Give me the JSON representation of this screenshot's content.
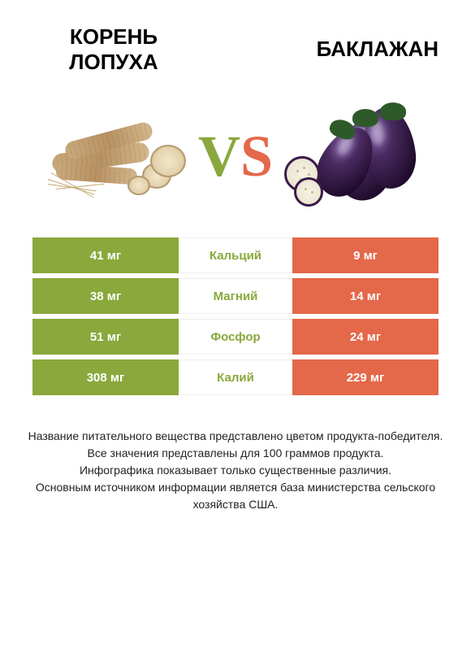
{
  "header": {
    "left_title_line1": "Корень",
    "left_title_line2": "лопуха",
    "right_title": "Баклажан"
  },
  "vs": {
    "v": "V",
    "s": "S"
  },
  "colors": {
    "left": "#8aa83c",
    "right": "#e4684a",
    "text_white": "#ffffff",
    "bg": "#ffffff"
  },
  "table": {
    "label_fontsize": 15,
    "rows": [
      {
        "label": "Кальций",
        "left_value": "41 мг",
        "right_value": "9 мг",
        "winner": "left"
      },
      {
        "label": "Магний",
        "left_value": "38 мг",
        "right_value": "14 мг",
        "winner": "left"
      },
      {
        "label": "Фосфор",
        "left_value": "51 мг",
        "right_value": "24 мг",
        "winner": "left"
      },
      {
        "label": "Калий",
        "left_value": "308 мг",
        "right_value": "229 мг",
        "winner": "left"
      }
    ]
  },
  "footer": {
    "line1": "Название питательного вещества представлено цветом продукта-победителя.",
    "line2": "Все значения представлены для 100 граммов продукта.",
    "line3": "Инфографика показывает только существенные различия.",
    "line4": "Основным источником информации является база министерства сельского хозяйства США."
  }
}
